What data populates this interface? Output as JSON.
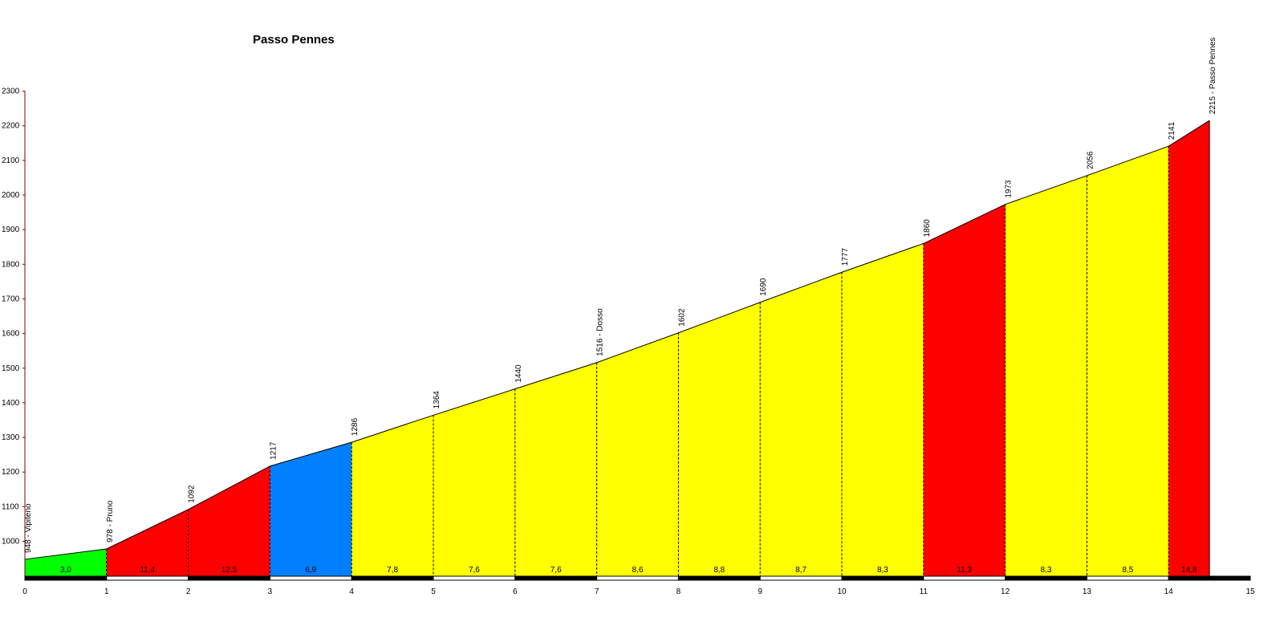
{
  "chart_data": {
    "type": "area",
    "title": "Passo Pennes",
    "xlabel": "",
    "ylabel": "",
    "xlim": [
      0,
      15
    ],
    "ylim": [
      900,
      2300
    ],
    "x_ticks": [
      0,
      1,
      2,
      3,
      4,
      5,
      6,
      7,
      8,
      9,
      10,
      11,
      12,
      13,
      14,
      15
    ],
    "y_ticks": [
      1000,
      1100,
      1200,
      1300,
      1400,
      1500,
      1600,
      1700,
      1800,
      1900,
      2000,
      2100,
      2200,
      2300
    ],
    "grid": false,
    "profile": [
      {
        "km": 0,
        "alt": 948,
        "label": "948 - Vipiteno"
      },
      {
        "km": 1,
        "alt": 978,
        "label": "978 - Pruno"
      },
      {
        "km": 2,
        "alt": 1092,
        "label": "1092"
      },
      {
        "km": 3,
        "alt": 1217,
        "label": "1217"
      },
      {
        "km": 4,
        "alt": 1286,
        "label": "1286"
      },
      {
        "km": 5,
        "alt": 1364,
        "label": "1364"
      },
      {
        "km": 6,
        "alt": 1440,
        "label": "1440"
      },
      {
        "km": 7,
        "alt": 1516,
        "label": "1516 - Dosso"
      },
      {
        "km": 8,
        "alt": 1602,
        "label": "1602"
      },
      {
        "km": 9,
        "alt": 1690,
        "label": "1690"
      },
      {
        "km": 10,
        "alt": 1777,
        "label": "1777"
      },
      {
        "km": 11,
        "alt": 1860,
        "label": "1860"
      },
      {
        "km": 12,
        "alt": 1973,
        "label": "1973"
      },
      {
        "km": 13,
        "alt": 2056,
        "label": "2056"
      },
      {
        "km": 14,
        "alt": 2141,
        "label": "2141"
      },
      {
        "km": 14.5,
        "alt": 2215,
        "label": "2215 - Passo Pennes"
      }
    ],
    "segments": [
      {
        "from": 0,
        "to": 1,
        "gradient": "3,0",
        "color": "#00ff00"
      },
      {
        "from": 1,
        "to": 2,
        "gradient": "11,4",
        "color": "#ff0000"
      },
      {
        "from": 2,
        "to": 3,
        "gradient": "12,5",
        "color": "#ff0000"
      },
      {
        "from": 3,
        "to": 4,
        "gradient": "6,9",
        "color": "#0080ff"
      },
      {
        "from": 4,
        "to": 5,
        "gradient": "7,8",
        "color": "#ffff00"
      },
      {
        "from": 5,
        "to": 6,
        "gradient": "7,6",
        "color": "#ffff00"
      },
      {
        "from": 6,
        "to": 7,
        "gradient": "7,6",
        "color": "#ffff00"
      },
      {
        "from": 7,
        "to": 8,
        "gradient": "8,6",
        "color": "#ffff00"
      },
      {
        "from": 8,
        "to": 9,
        "gradient": "8,8",
        "color": "#ffff00"
      },
      {
        "from": 9,
        "to": 10,
        "gradient": "8,7",
        "color": "#ffff00"
      },
      {
        "from": 10,
        "to": 11,
        "gradient": "8,3",
        "color": "#ffff00"
      },
      {
        "from": 11,
        "to": 12,
        "gradient": "11,3",
        "color": "#ff0000"
      },
      {
        "from": 12,
        "to": 13,
        "gradient": "8,3",
        "color": "#ffff00"
      },
      {
        "from": 13,
        "to": 14,
        "gradient": "8,5",
        "color": "#ffff00"
      },
      {
        "from": 14,
        "to": 14.5,
        "gradient": "14,8",
        "color": "#ff0000"
      }
    ],
    "colors": {
      "axis": "#800000",
      "outline": "#000000",
      "scale_dark": "#000000",
      "scale_light": "#ffffff"
    }
  }
}
